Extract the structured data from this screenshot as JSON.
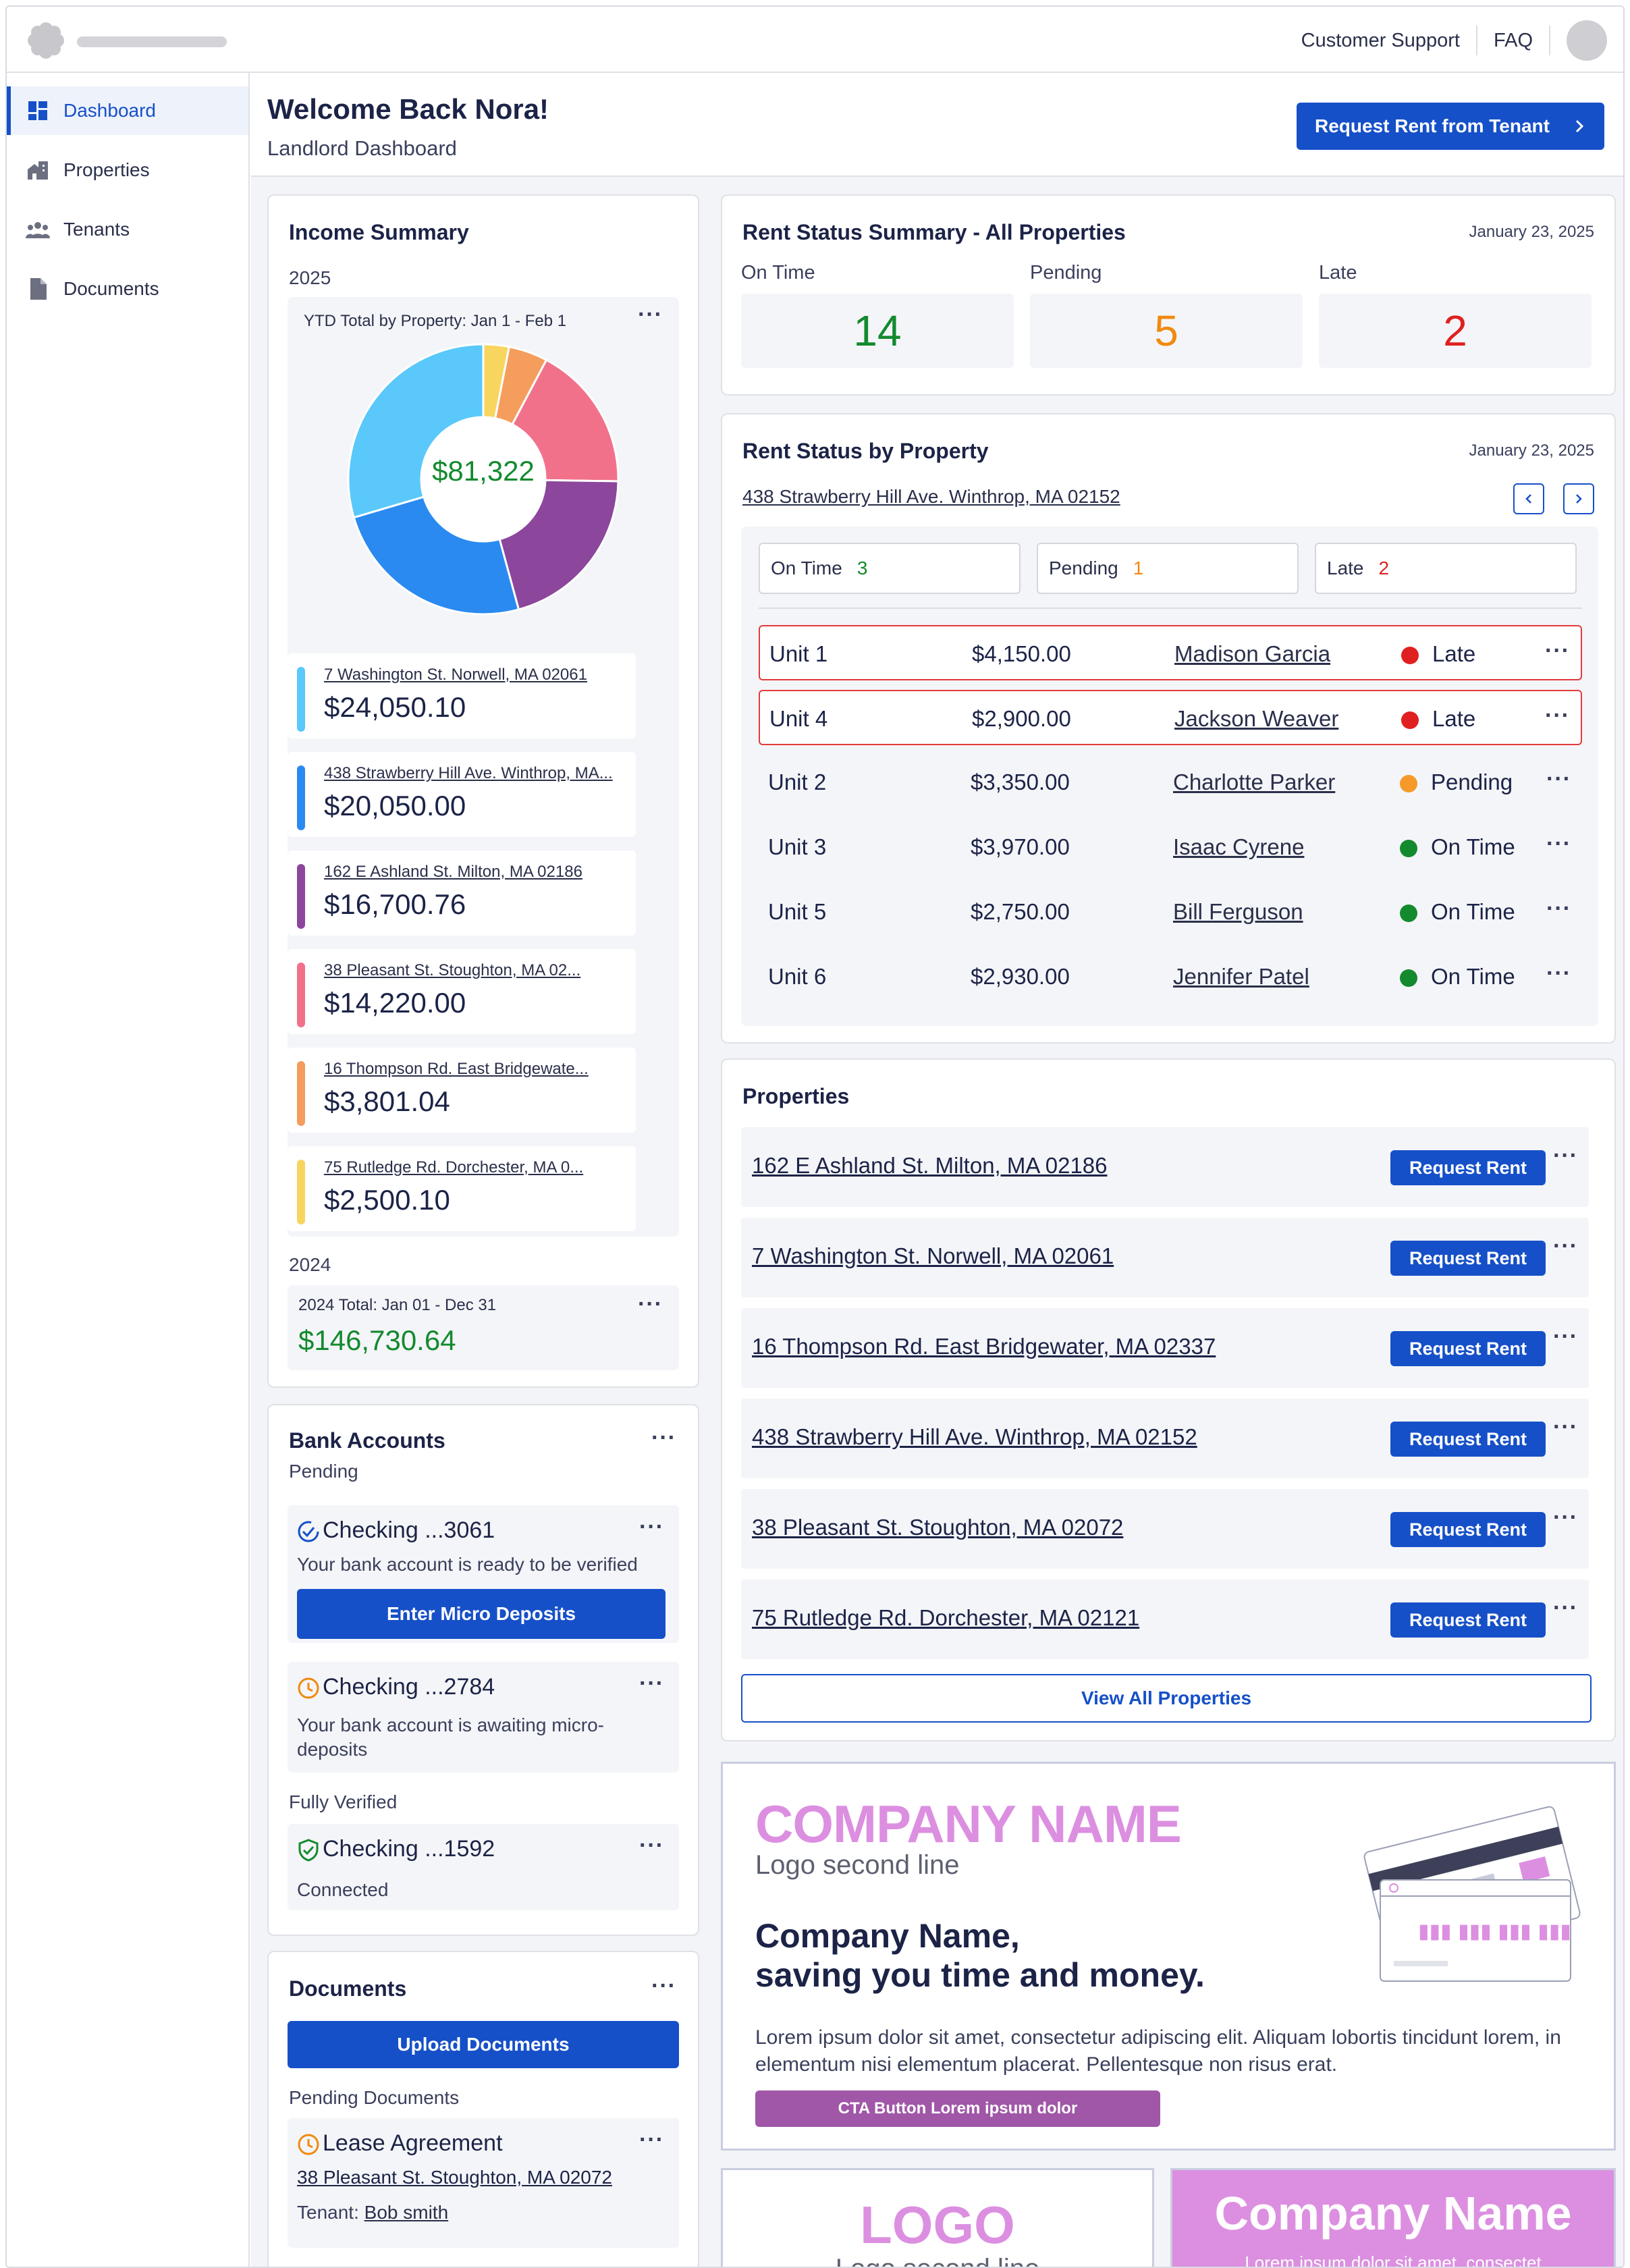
{
  "topnav": {
    "support": "Customer Support",
    "faq": "FAQ"
  },
  "sidebar": {
    "items": [
      {
        "label": "Dashboard",
        "icon": "dashboard-icon"
      },
      {
        "label": "Properties",
        "icon": "properties-icon"
      },
      {
        "label": "Tenants",
        "icon": "tenants-icon"
      },
      {
        "label": "Documents",
        "icon": "document-icon"
      }
    ]
  },
  "header": {
    "title": "Welcome Back Nora!",
    "subtitle": "Landlord Dashboard",
    "request_button": "Request Rent from Tenant"
  },
  "income": {
    "title": "Income Summary",
    "year_current": "2025",
    "chart_caption": "YTD Total by Property: Jan 1 - Feb 1",
    "total": "$81,322",
    "properties": [
      {
        "address": "7 Washington St. Norwell, MA 02061",
        "amount": "$24,050.10",
        "color": "#5ac8fa"
      },
      {
        "address": "438 Strawberry Hill Ave. Winthrop, MA...",
        "amount": "$20,050.00",
        "color": "#2a8af0"
      },
      {
        "address": "162 E Ashland St. Milton, MA 02186",
        "amount": "$16,700.76",
        "color": "#8c469c"
      },
      {
        "address": "38 Pleasant St. Stoughton, MA 02...",
        "amount": "$14,220.00",
        "color": "#f2718a"
      },
      {
        "address": "16 Thompson Rd. East Bridgewate...",
        "amount": "$3,801.04",
        "color": "#f59d5c"
      },
      {
        "address": "75 Rutledge Rd. Dorchester, MA 0...",
        "amount": "$2,500.10",
        "color": "#f7d55e"
      }
    ],
    "year_prev": "2024",
    "prev_caption": "2024 Total: Jan 01 - Dec 31",
    "prev_total": "$146,730.64"
  },
  "chart_data": {
    "type": "pie",
    "categories": [
      "7 Washington St. Norwell, MA 02061",
      "438 Strawberry Hill Ave. Winthrop, MA...",
      "162 E Ashland St. Milton, MA 02186",
      "38 Pleasant St. Stoughton, MA 02...",
      "16 Thompson Rd. East Bridgewate...",
      "75 Rutledge Rd. Dorchester, MA 0..."
    ],
    "values": [
      24050.1,
      20050.0,
      16700.76,
      14220.0,
      3801.04,
      2500.1
    ],
    "colors": [
      "#5ac8fa",
      "#2a8af0",
      "#8c469c",
      "#f2718a",
      "#f59d5c",
      "#f7d55e"
    ],
    "title": "YTD Total by Property: Jan 1 - Feb 1",
    "center_label": "$81,322"
  },
  "rent_status": {
    "title": "Rent Status Summary - All Properties",
    "date": "January 23, 2025",
    "on_time_label": "On Time",
    "on_time": "14",
    "pending_label": "Pending",
    "pending": "5",
    "late_label": "Late",
    "late": "2"
  },
  "by_property": {
    "title": "Rent Status by Property",
    "date": "January 23, 2025",
    "address": "438 Strawberry Hill Ave. Winthrop, MA 02152",
    "filters": [
      {
        "label": "On Time",
        "count": "3",
        "color": "#138a2e"
      },
      {
        "label": "Pending",
        "count": "1",
        "color": "#f08a10"
      },
      {
        "label": "Late",
        "count": "2",
        "color": "#e02020"
      }
    ],
    "units": [
      {
        "unit": "Unit 1",
        "amount": "$4,150.00",
        "tenant": "Madison Garcia",
        "status": "Late",
        "color": "#e02020",
        "late": true
      },
      {
        "unit": "Unit 4",
        "amount": "$2,900.00",
        "tenant": "Jackson Weaver",
        "status": "Late",
        "color": "#e02020",
        "late": true
      },
      {
        "unit": "Unit 2",
        "amount": "$3,350.00",
        "tenant": "Charlotte Parker",
        "status": "Pending",
        "color": "#f59a2a",
        "late": false
      },
      {
        "unit": "Unit 3",
        "amount": "$3,970.00",
        "tenant": "Isaac Cyrene",
        "status": "On Time",
        "color": "#138a2e",
        "late": false
      },
      {
        "unit": "Unit 5",
        "amount": "$2,750.00",
        "tenant": "Bill Ferguson",
        "status": "On Time",
        "color": "#138a2e",
        "late": false
      },
      {
        "unit": "Unit 6",
        "amount": "$2,930.00",
        "tenant": "Jennifer Patel",
        "status": "On Time",
        "color": "#138a2e",
        "late": false
      }
    ]
  },
  "properties": {
    "title": "Properties",
    "request_label": "Request Rent",
    "view_all": "View All Properties",
    "list": [
      "162 E Ashland St. Milton, MA 02186",
      "7 Washington St. Norwell, MA 02061",
      "16 Thompson Rd. East Bridgewater, MA 02337",
      "438 Strawberry Hill Ave. Winthrop, MA 02152",
      "38 Pleasant St. Stoughton, MA 02072",
      "75 Rutledge Rd. Dorchester, MA 02121"
    ]
  },
  "bank": {
    "title": "Bank Accounts",
    "pending_label": "Pending",
    "acct1_name": "Checking ...3061",
    "acct1_desc": "Your bank account is ready to be verified",
    "acct1_button": "Enter Micro Deposits",
    "acct2_name": "Checking ...2784",
    "acct2_desc": "Your bank account is awaiting micro-deposits",
    "verified_label": "Fully Verified",
    "acct3_name": "Checking ...1592",
    "acct3_desc": "Connected"
  },
  "documents": {
    "title": "Documents",
    "upload": "Upload Documents",
    "pending_label": "Pending Documents",
    "doc_name": "Lease Agreement",
    "doc_address": "38 Pleasant St. Stoughton, MA 02072",
    "tenant_label": "Tenant:",
    "tenant_name": "Bob smith"
  },
  "ad": {
    "company": "COMPANY NAME",
    "logo_line": "Logo second line",
    "headline1": "Company Name,",
    "headline2": "saving you time and money.",
    "body": "Lorem ipsum dolor sit amet, consectetur adipiscing elit. Aliquam lobortis tincidunt lorem, in elementum nisi elementum placerat. Pellentesque non risus erat.",
    "cta": "CTA Button Lorem ipsum dolor",
    "card_digits": "▮▮▮ ▮▮▮ ▮▮▮ ▮▮▮"
  },
  "ad2": {
    "logo": "LOGO",
    "logo_line": "Logo second line"
  },
  "ad3": {
    "company": "Company Name",
    "tagline": "Lorem ipsum dolor sit amet, consectet"
  }
}
